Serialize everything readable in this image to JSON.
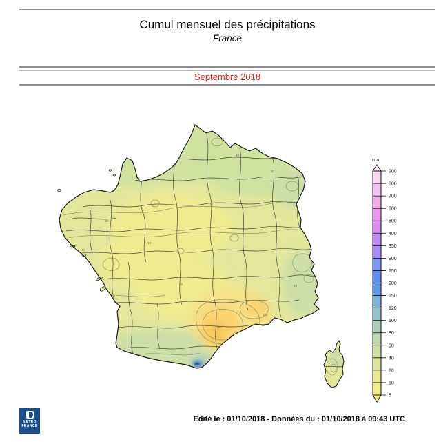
{
  "header": {
    "title": "Cumul mensuel des précipitations",
    "subtitle": "France",
    "period": "Septembre 2018"
  },
  "legend": {
    "unit": "mm",
    "levels": [
      900,
      800,
      700,
      600,
      500,
      400,
      350,
      300,
      250,
      200,
      150,
      120,
      100,
      80,
      60,
      40,
      20,
      10,
      5
    ],
    "segment_colors": [
      "#f7d9f0",
      "#f4c2f0",
      "#f0abef",
      "#eb97ef",
      "#dd8df1",
      "#bd89f3",
      "#a78df4",
      "#7e97f2",
      "#5f90ee",
      "#5c9ae6",
      "#7fb3d8",
      "#95c3cb",
      "#abceba",
      "#bed7ad",
      "#cfdfa4",
      "#dde49c",
      "#e9e992",
      "#f2ee89"
    ],
    "above_color": "#faeef7",
    "below_color": "#f6f180"
  },
  "map": {
    "colors": {
      "base": "#e3e79c",
      "north_green": "#cfe2a0",
      "relief_green": "#ccdfa8",
      "pale_yellow": "#eeeb90",
      "orange_soft": "#f6e189",
      "orange": "#fbd36e",
      "orange_deep": "#f9c95c",
      "coast_teal": "#a9cdbd",
      "blue_spot": "#3f6fc0",
      "blue_spot_core": "#2c58a8",
      "outline": "#1b1b1b",
      "dept_border": "#3c3c34",
      "contour": "#8f9a62"
    },
    "contour_labels": [
      "40",
      "10",
      "20",
      "40",
      "10",
      "100",
      "150",
      "60",
      "20",
      "10"
    ]
  },
  "footer": {
    "logo_line1": "METEO",
    "logo_line2": "FRANCE",
    "edited": "Edité le : 01/10/2018 - Données du : 01/10/2018 à 09:43 UTC"
  }
}
